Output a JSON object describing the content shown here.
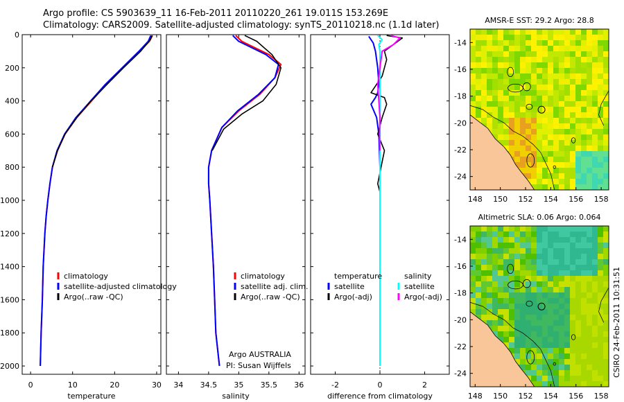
{
  "header": {
    "line1": "Argo profile: CS 5903639_11 16-Feb-2011 20110220_261 19.011S 153.269E",
    "line2": "Climatology: CARS2009. Satellite-adjusted climatology: synTS_20110218.nc (1.1d later)"
  },
  "footer_stamp": "CSIRO 24-Feb-2011 10:31:51",
  "colors": {
    "climatology": "#ff0000",
    "satellite": "#0000ff",
    "argo": "#000000",
    "cyan": "#00ffff",
    "magenta": "#ff00ff",
    "land": "#f9c69a"
  },
  "chart_data": [
    {
      "type": "line",
      "id": "temperature",
      "xlabel": "temperature",
      "xlim": [
        -2,
        31
      ],
      "ylim": [
        2050,
        0
      ],
      "xticks": [
        "0",
        "10",
        "20",
        "30"
      ],
      "yticks": [
        "0",
        "200",
        "400",
        "600",
        "800",
        "1000",
        "1200",
        "1400",
        "1600",
        "1800",
        "2000"
      ],
      "legend": [
        "climatology",
        "satellite-adjusted climatology",
        "Argo(..raw -QC)"
      ],
      "series": [
        {
          "name": "climatology",
          "color": "#ff0000",
          "x": [
            29.0,
            28.3,
            26.0,
            22.0,
            18.0,
            14.5,
            11.0,
            8.2,
            6.4,
            5.2,
            4.6,
            4.1,
            3.7,
            3.4,
            3.0,
            2.8,
            2.5,
            2.3
          ],
          "y": [
            5,
            40,
            100,
            200,
            300,
            400,
            500,
            600,
            700,
            800,
            900,
            1000,
            1100,
            1200,
            1400,
            1600,
            1800,
            2000
          ]
        },
        {
          "name": "satellite-adjusted climatology",
          "color": "#0000ff",
          "x": [
            28.6,
            28.0,
            25.8,
            21.8,
            17.8,
            14.3,
            10.8,
            8.1,
            6.3,
            5.2,
            4.6,
            4.1,
            3.7,
            3.4,
            3.0,
            2.8,
            2.5,
            2.3
          ],
          "y": [
            5,
            40,
            100,
            200,
            300,
            400,
            500,
            600,
            700,
            800,
            900,
            1000,
            1100,
            1200,
            1400,
            1600,
            1800,
            2000
          ]
        },
        {
          "name": "Argo(..raw -QC)",
          "color": "#000000",
          "x": [
            28.9,
            28.5,
            26.2,
            22.1,
            18.2,
            14.4,
            11.0,
            8.2,
            6.4,
            5.2
          ],
          "y": [
            5,
            30,
            100,
            200,
            300,
            400,
            500,
            600,
            700,
            800
          ]
        }
      ]
    },
    {
      "type": "line",
      "id": "salinity",
      "xlabel": "salinity",
      "xlim": [
        33.8,
        36.1
      ],
      "ylim": [
        2050,
        0
      ],
      "xticks": [
        "34",
        "34.5",
        "35",
        "35.5",
        "36"
      ],
      "legend": [
        "climatology",
        "satellite adj. clim.",
        "Argo(..raw -QC)"
      ],
      "annotation": [
        "Argo AUSTRALIA",
        "PI: Susan Wijffels"
      ],
      "series": [
        {
          "name": "climatology",
          "color": "#ff0000",
          "x": [
            34.95,
            35.05,
            35.5,
            35.7,
            35.6,
            35.35,
            35.0,
            34.72,
            34.55,
            34.5,
            34.5,
            34.52,
            34.55,
            34.58,
            34.6,
            34.62,
            34.65,
            34.68
          ],
          "y": [
            5,
            40,
            120,
            180,
            260,
            360,
            460,
            560,
            700,
            800,
            900,
            1000,
            1200,
            1400,
            1600,
            1800,
            1900,
            2000
          ]
        },
        {
          "name": "satellite adj. clim.",
          "color": "#0000ff",
          "x": [
            34.9,
            35.0,
            35.45,
            35.66,
            35.6,
            35.33,
            34.98,
            34.72,
            34.55,
            34.5,
            34.5,
            34.52,
            34.55,
            34.58,
            34.6,
            34.62,
            34.65,
            34.68
          ],
          "y": [
            5,
            40,
            120,
            180,
            260,
            360,
            460,
            560,
            700,
            800,
            900,
            1000,
            1200,
            1400,
            1600,
            1800,
            1900,
            2000
          ]
        },
        {
          "name": "Argo(..raw -QC)",
          "color": "#000000",
          "x": [
            35.1,
            35.3,
            35.55,
            35.7,
            35.62,
            35.4,
            35.05,
            34.75,
            34.56
          ],
          "y": [
            5,
            40,
            120,
            200,
            300,
            400,
            480,
            570,
            700
          ]
        }
      ]
    },
    {
      "type": "line",
      "id": "difference",
      "xlabel": "difference from climatology",
      "xlim": [
        -3.1,
        3.1
      ],
      "ylim": [
        2050,
        0
      ],
      "xticks": [
        "-2",
        "0",
        "2"
      ],
      "legend": [
        "temperature",
        "satellite",
        "Argo(-adj)",
        "salinity",
        "satellite",
        "Argo(-adj)"
      ],
      "series": [
        {
          "name": "temperature satellite",
          "color": "#0000ff",
          "x": [
            -0.5,
            -0.3,
            -0.2,
            -0.1,
            -0.05,
            -0.1,
            -0.2,
            -0.4,
            -0.15,
            -0.05,
            0.0,
            0.0,
            0.0,
            0.0,
            0.0
          ],
          "y": [
            10,
            50,
            100,
            200,
            300,
            350,
            380,
            420,
            500,
            600,
            800,
            1000,
            1400,
            1800,
            2000
          ]
        },
        {
          "name": "temperature Argo(-adj)",
          "color": "#000000",
          "x": [
            0.3,
            1.0,
            0.6,
            0.2,
            0.3,
            0.1,
            -0.4,
            0.2,
            0.3,
            0.1,
            -0.1,
            0.2,
            0.05,
            -0.1,
            0.0,
            0.0
          ],
          "y": [
            5,
            20,
            60,
            100,
            150,
            250,
            350,
            380,
            420,
            500,
            600,
            700,
            800,
            900,
            950,
            1000
          ]
        },
        {
          "name": "salinity satellite",
          "color": "#00ffff",
          "x": [
            -0.1,
            0.1,
            -0.05,
            0.0,
            0.0,
            0.0,
            0.0,
            0.0,
            0.0,
            0.0,
            0.0,
            0.0
          ],
          "y": [
            5,
            30,
            60,
            100,
            200,
            300,
            500,
            800,
            1000,
            1400,
            1800,
            2000
          ]
        },
        {
          "name": "salinity Argo(-adj)",
          "color": "#ff00ff",
          "x": [
            0.5,
            0.9,
            0.6,
            0.1,
            0.0,
            -0.1,
            -0.05,
            0.0,
            -0.02,
            0.0
          ],
          "y": [
            5,
            20,
            60,
            100,
            200,
            300,
            400,
            500,
            600,
            700
          ]
        }
      ]
    },
    {
      "type": "heatmap",
      "id": "sst",
      "title": "AMSR-E SST: 29.2 Argo: 28.8",
      "xlim": [
        147.6,
        158.6
      ],
      "ylim": [
        -25,
        -13
      ],
      "xticks": [
        "148",
        "150",
        "152",
        "154",
        "156",
        "158"
      ],
      "yticks": [
        "-14",
        "-16",
        "-18",
        "-20",
        "-22",
        "-24"
      ],
      "argo_position": {
        "lon": 153.269,
        "lat": -19.011
      }
    },
    {
      "type": "heatmap",
      "id": "sla",
      "title": "Altimetric SLA: 0.06 Argo: 0.064",
      "xlim": [
        147.6,
        158.6
      ],
      "ylim": [
        -25,
        -13
      ],
      "xticks": [
        "148",
        "150",
        "152",
        "154",
        "156",
        "158"
      ],
      "yticks": [
        "-14",
        "-16",
        "-18",
        "-20",
        "-22",
        "-24"
      ],
      "argo_position": {
        "lon": 153.269,
        "lat": -19.011
      }
    }
  ]
}
